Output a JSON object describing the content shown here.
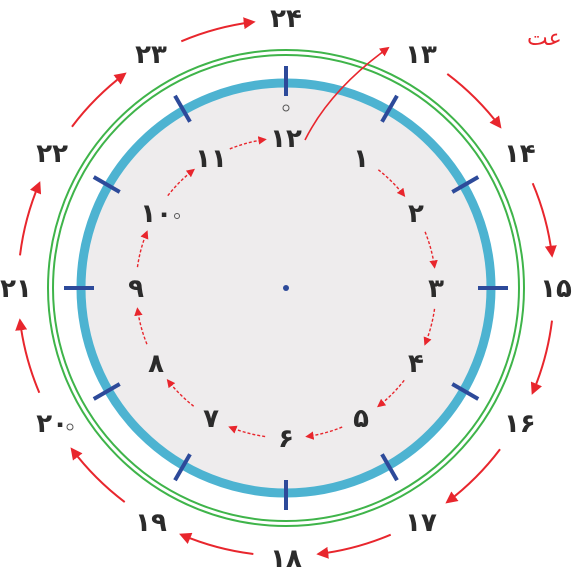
{
  "corner_text": "عت",
  "inner_hours": [
    "۱",
    "۲",
    "۳",
    "۴",
    "۵",
    "۶",
    "۷",
    "۸",
    "۹",
    "۱۰",
    "۱۱",
    "۱۲"
  ],
  "outer_hours": [
    "۱۳",
    "۱۴",
    "۱۵",
    "۱۶",
    "۱۷",
    "۱۸",
    "۱۹",
    "۲۰",
    "۲۱",
    "۲۲",
    "۲۳",
    "۲۴"
  ],
  "colors": {
    "arrow": "#e8262d",
    "blue_ring": "#4db3d1",
    "green_ring": "#3fb44a",
    "tick": "#2d4a9a",
    "face": "#eeeced",
    "text": "#2b2b2b"
  }
}
